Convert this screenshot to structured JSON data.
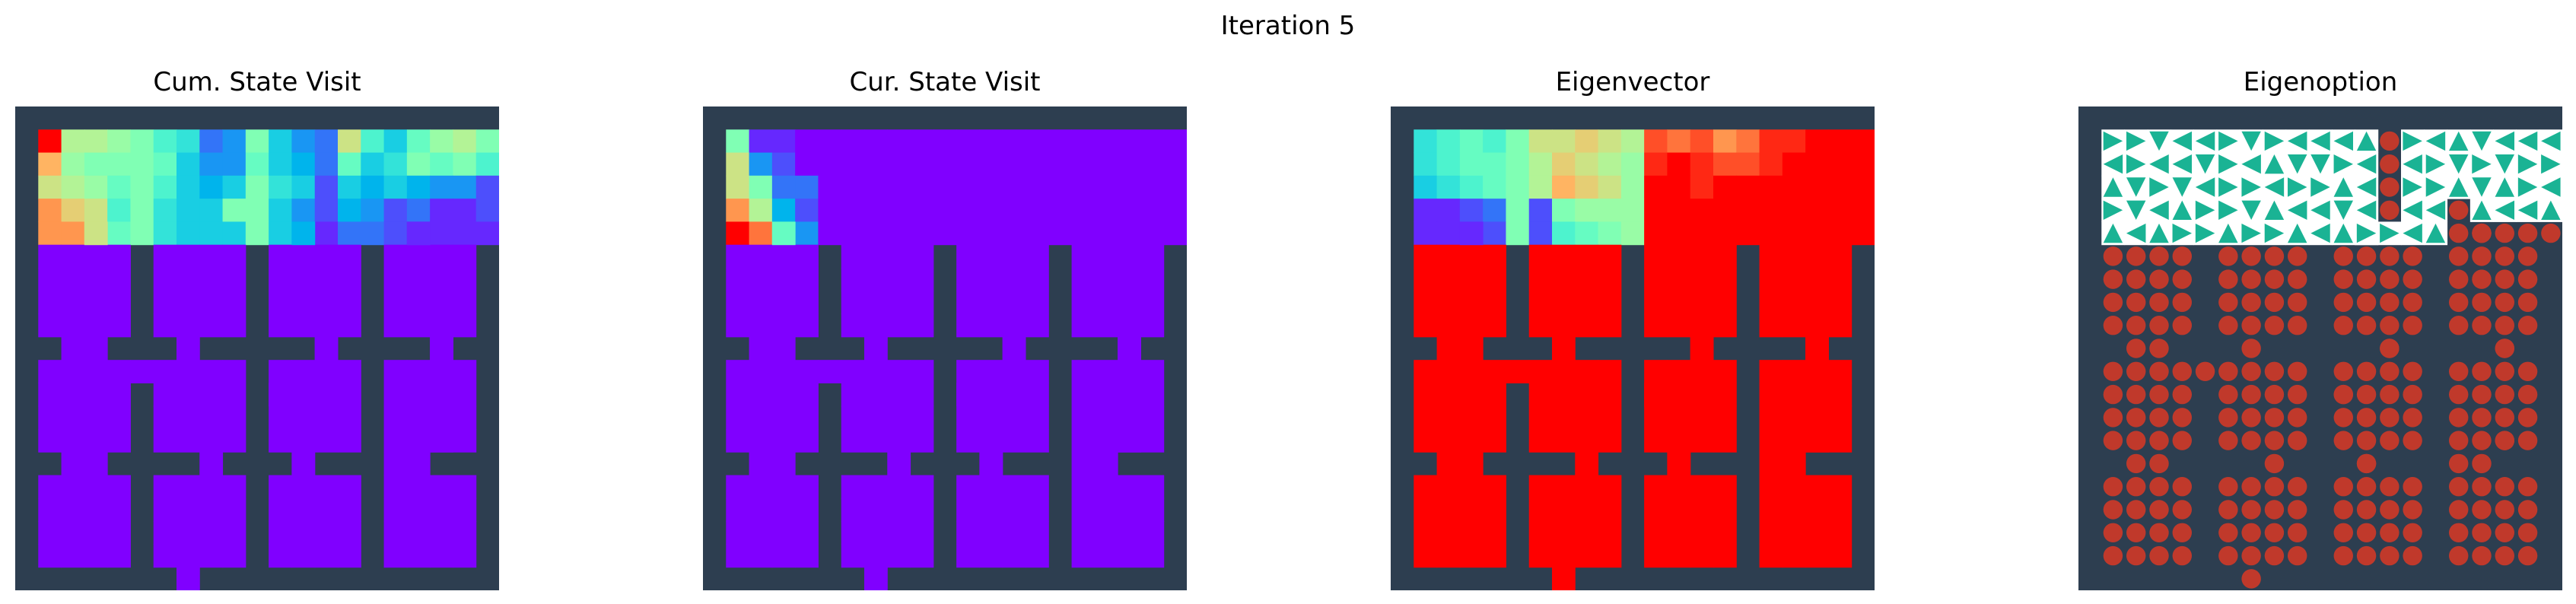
{
  "figure": {
    "suptitle": "Iteration 5"
  },
  "colors": {
    "wall": "#2d3e50",
    "floor_blank": "#ffffff",
    "arrow": "#1ab394",
    "dot": "#c0392b"
  },
  "chart_data": [
    {
      "type": "heatmap",
      "title": "Cum. State Visit",
      "colormap": "rainbow",
      "clim": [
        0,
        1
      ],
      "background": 0,
      "top_row_rooms": [
        [
          [
            1.0,
            0.6,
            0.6,
            0.55,
            0.5
          ],
          [
            0.75,
            0.55,
            0.5,
            0.5,
            0.5
          ],
          [
            0.65,
            0.6,
            0.55,
            0.45,
            0.5
          ],
          [
            0.8,
            0.7,
            0.65,
            0.4,
            0.5
          ],
          [
            0.8,
            0.8,
            0.65,
            0.45,
            0.5
          ]
        ],
        [
          [
            0.4,
            0.35,
            0.15,
            0.2,
            0.5
          ],
          [
            0.45,
            0.3,
            0.2,
            0.2,
            0.45
          ],
          [
            0.4,
            0.3,
            0.25,
            0.3,
            0.5
          ],
          [
            0.35,
            0.3,
            0.3,
            0.5,
            0.5
          ],
          [
            0.35,
            0.3,
            0.3,
            0.3,
            0.5
          ]
        ],
        [
          [
            0.3,
            0.2,
            0.15,
            0.65,
            0.4
          ],
          [
            0.3,
            0.25,
            0.15,
            0.45,
            0.3
          ],
          [
            0.35,
            0.3,
            0.1,
            0.3,
            0.25
          ],
          [
            0.3,
            0.2,
            0.1,
            0.25,
            0.2
          ],
          [
            0.3,
            0.25,
            0.05,
            0.15,
            0.15
          ]
        ],
        [
          [
            0.3,
            0.45,
            0.55,
            0.6,
            0.5
          ],
          [
            0.35,
            0.5,
            0.45,
            0.5,
            0.4
          ],
          [
            0.3,
            0.25,
            0.2,
            0.2,
            0.1
          ],
          [
            0.1,
            0.15,
            0.05,
            0.05,
            0.1
          ],
          [
            0.1,
            0.05,
            0.05,
            0.05,
            0.05
          ]
        ]
      ]
    },
    {
      "type": "heatmap",
      "title": "Cur. State Visit",
      "colormap": "rainbow",
      "clim": [
        0,
        1
      ],
      "background": 0,
      "top_row_rooms": [
        [
          [
            0.5,
            0.05,
            0.05,
            0.0,
            0.0
          ],
          [
            0.65,
            0.2,
            0.1,
            0.0,
            0.0
          ],
          [
            0.65,
            0.5,
            0.15,
            0.15,
            0.0
          ],
          [
            0.8,
            0.6,
            0.25,
            0.1,
            0.0
          ],
          [
            1.0,
            0.85,
            0.45,
            0.2,
            0.0
          ]
        ],
        [
          [
            0,
            0,
            0,
            0,
            0
          ],
          [
            0,
            0,
            0,
            0,
            0
          ],
          [
            0,
            0,
            0,
            0,
            0
          ],
          [
            0,
            0,
            0,
            0,
            0
          ],
          [
            0,
            0,
            0,
            0,
            0
          ]
        ],
        [
          [
            0,
            0,
            0,
            0,
            0
          ],
          [
            0,
            0,
            0,
            0,
            0
          ],
          [
            0,
            0,
            0,
            0,
            0
          ],
          [
            0,
            0,
            0,
            0,
            0
          ],
          [
            0,
            0,
            0,
            0,
            0
          ]
        ],
        [
          [
            0,
            0,
            0,
            0,
            0
          ],
          [
            0,
            0,
            0,
            0,
            0
          ],
          [
            0,
            0,
            0,
            0,
            0
          ],
          [
            0,
            0,
            0,
            0,
            0
          ],
          [
            0,
            0,
            0,
            0,
            0
          ]
        ]
      ]
    },
    {
      "type": "heatmap",
      "title": "Eigenvector",
      "colormap": "rainbow",
      "clim": [
        0,
        1
      ],
      "background": 1,
      "top_row_rooms": [
        [
          [
            0.35,
            0.4,
            0.45,
            0.4,
            0.5
          ],
          [
            0.35,
            0.4,
            0.45,
            0.45,
            0.5
          ],
          [
            0.3,
            0.35,
            0.4,
            0.45,
            0.5
          ],
          [
            0.05,
            0.05,
            0.1,
            0.15,
            0.5
          ],
          [
            0.05,
            0.05,
            0.05,
            0.1,
            0.5
          ]
        ],
        [
          [
            0.65,
            0.65,
            0.7,
            0.65,
            0.6
          ],
          [
            0.6,
            0.7,
            0.65,
            0.6,
            0.55
          ],
          [
            0.6,
            0.75,
            0.7,
            0.65,
            0.55
          ],
          [
            0.1,
            0.5,
            0.55,
            0.55,
            0.55
          ],
          [
            0.1,
            0.4,
            0.45,
            0.5,
            0.55
          ]
        ],
        [
          [
            0.9,
            0.85,
            0.9,
            0.8,
            0.85
          ],
          [
            0.95,
            1.0,
            0.95,
            0.9,
            0.9
          ],
          [
            1.0,
            1.0,
            0.95,
            1.0,
            1.0
          ],
          [
            1.0,
            1.0,
            1.0,
            1.0,
            1.0
          ],
          [
            1.0,
            1.0,
            1.0,
            1.0,
            1.0
          ]
        ],
        [
          [
            0.95,
            0.95,
            1.0,
            1.0,
            1.0
          ],
          [
            0.95,
            1.0,
            1.0,
            1.0,
            1.0
          ],
          [
            1.0,
            1.0,
            1.0,
            1.0,
            1.0
          ],
          [
            1.0,
            1.0,
            1.0,
            1.0,
            1.0
          ],
          [
            1.0,
            1.0,
            1.0,
            1.0,
            1.0
          ]
        ]
      ]
    },
    {
      "type": "policy",
      "title": "Eigenoption",
      "top_row_actions": [
        [
          [
            "R",
            "R",
            "D",
            "L",
            "L"
          ],
          [
            "L",
            "R",
            "L",
            "L",
            "D"
          ],
          [
            "U",
            "D",
            "R",
            "D",
            "L"
          ],
          [
            "R",
            "D",
            "L",
            "U",
            "R"
          ],
          [
            "U",
            "L",
            "U",
            "R",
            "R"
          ]
        ],
        [
          [
            "R",
            "D",
            "R",
            "L",
            "L"
          ],
          [
            "R",
            "L",
            "U",
            "D",
            "D"
          ],
          [
            "R",
            "R",
            "L",
            "R",
            "R"
          ],
          [
            "R",
            "D",
            "U",
            "L",
            "L"
          ],
          [
            "U",
            "R",
            "R",
            "U",
            "L"
          ]
        ],
        [
          [
            "L",
            "U",
            "O",
            "R",
            "L"
          ],
          [
            "R",
            "L",
            "O",
            "L",
            "R"
          ],
          [
            "U",
            "L",
            "O",
            "R",
            "R"
          ],
          [
            "D",
            "L",
            "O",
            "L",
            "L"
          ],
          [
            "U",
            "R",
            "R",
            "L",
            "U"
          ]
        ],
        [
          [
            "U",
            "D",
            "L",
            "L",
            "L"
          ],
          [
            "D",
            "R",
            "D",
            "R",
            "R"
          ],
          [
            "U",
            "D",
            "U",
            "R",
            "L"
          ],
          [
            "O",
            "U",
            "L",
            "L",
            "U"
          ],
          [
            "O",
            "O",
            "O",
            "O",
            "O"
          ]
        ]
      ]
    }
  ]
}
